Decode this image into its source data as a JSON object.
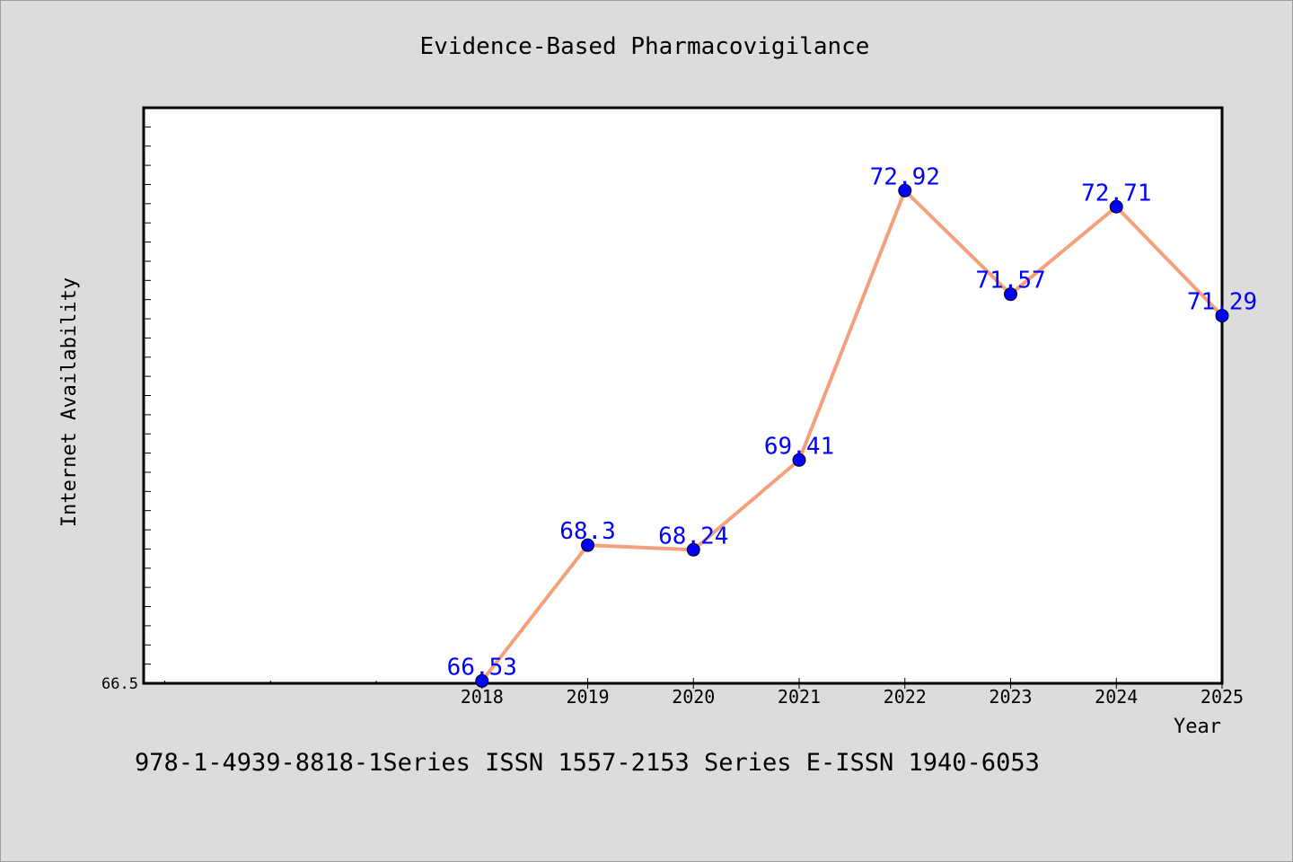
{
  "chart_data": {
    "type": "line",
    "title": "Evidence-Based Pharmacovigilance",
    "xlabel": "Year",
    "ylabel": "Internet Availability",
    "categories": [
      "2018",
      "2019",
      "2020",
      "2021",
      "2022",
      "2023",
      "2024",
      "2025"
    ],
    "values": [
      66.53,
      68.3,
      68.24,
      69.41,
      72.92,
      71.57,
      72.71,
      71.29
    ],
    "data_labels": [
      "66.53",
      "68.3",
      "68.24",
      "69.41",
      "72.92",
      "71.57",
      "72.71",
      "71.29"
    ],
    "y_tick_labels": [
      "66.5"
    ],
    "ylim": [
      66.5,
      74.0
    ],
    "x_domain": [
      2014.8,
      2025
    ],
    "grid": false,
    "legend": "none",
    "colors": {
      "line": "#f4a07c",
      "marker": "#0000ff",
      "data_label": "#0000ff",
      "plot_background": "#ffffff",
      "page_background": "#dcdcdc"
    }
  },
  "footnote": "978-1-4939-8818-1Series ISSN 1557-2153 Series E-ISSN 1940-6053"
}
